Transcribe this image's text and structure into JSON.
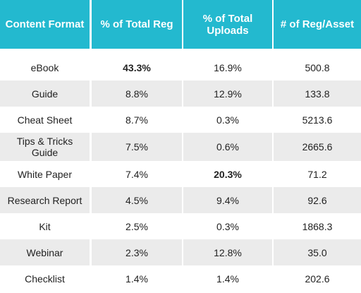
{
  "header": [
    "Content Format",
    "% of Total Reg",
    "% of Total Uploads",
    "# of Reg/Asset"
  ],
  "rows": [
    [
      "eBook",
      "43.3%",
      "16.9%",
      "500.8"
    ],
    [
      "Guide",
      "8.8%",
      "12.9%",
      "133.8"
    ],
    [
      "Cheat Sheet",
      "8.7%",
      "0.3%",
      "5213.6"
    ],
    [
      "Tips & Tricks Guide",
      "7.5%",
      "0.6%",
      "2665.6"
    ],
    [
      "White Paper",
      "7.4%",
      "20.3%",
      "71.2"
    ],
    [
      "Research Report",
      "4.5%",
      "9.4%",
      "92.6"
    ],
    [
      "Kit",
      "2.5%",
      "0.3%",
      "1868.3"
    ],
    [
      "Webinar",
      "2.3%",
      "12.8%",
      "35.0"
    ],
    [
      "Checklist",
      "1.4%",
      "1.4%",
      "202.6"
    ]
  ],
  "colors": {
    "header_bg": "#23b9cf",
    "header_text": "#ffffff",
    "stripe_bg": "#ebebeb"
  }
}
